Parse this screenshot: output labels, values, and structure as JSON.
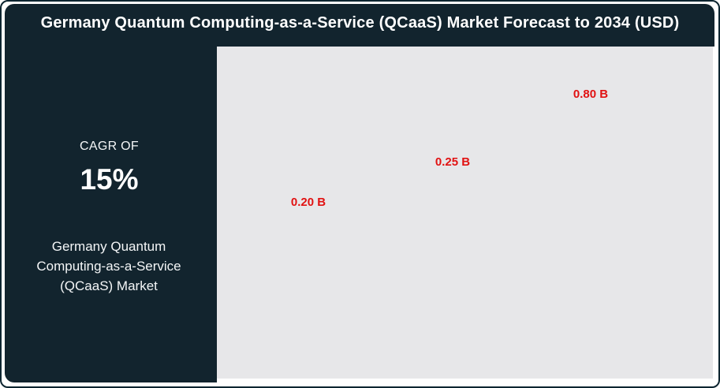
{
  "header": {
    "title": "Germany Quantum Computing-as-a-Service (QCaaS) Market Forecast to 2034 (USD)"
  },
  "sidebar": {
    "cagr_label": "CAGR OF",
    "cagr_value": "15%",
    "market_name": "Germany Quantum Computing-as-a-Service (QCaaS) Market"
  },
  "colors": {
    "panel_background": "#12242e",
    "frame_border": "#0d2530",
    "plot_background": "#e7e7e9",
    "data_label_red": "#e11212",
    "text_white": "#ffffff"
  },
  "chart_data": {
    "type": "bar",
    "title": "Germany Quantum Computing-as-a-Service (QCaaS) Market Forecast to 2034 (USD)",
    "unit": "USD Billion",
    "cagr_percent": 15,
    "points": [
      {
        "label": "0.20 B",
        "value": 0.2
      },
      {
        "label": "0.25 B",
        "value": 0.25
      },
      {
        "label": "0.80 B",
        "value": 0.8
      }
    ],
    "notes": "Only data labels are visible in the plot area; bars are not rendered (animation frame).",
    "legend": "none",
    "grid": "off"
  }
}
